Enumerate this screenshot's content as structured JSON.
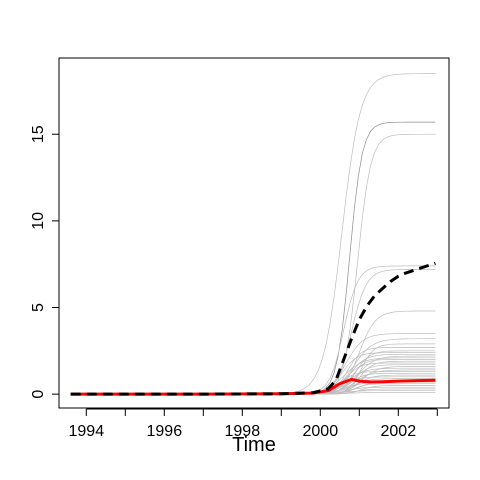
{
  "chart_data": {
    "type": "line",
    "title": "",
    "xlabel": "Time",
    "ylabel": "",
    "xlim": [
      1993.3,
      2003.3
    ],
    "ylim": [
      -0.8,
      19.4
    ],
    "x_ticks": [
      1994,
      1995,
      1996,
      1997,
      1998,
      1999,
      2000,
      2001,
      2002,
      2003
    ],
    "x_tick_labels": [
      "1994",
      "",
      "1996",
      "",
      "1998",
      "",
      "2000",
      "",
      "2002",
      ""
    ],
    "y_ticks": [
      0,
      5,
      10,
      15
    ],
    "y_tick_labels": [
      "0",
      "5",
      "10",
      "15"
    ],
    "grid": false,
    "legend": "none",
    "colors": {
      "background_series": "#bdbdbd",
      "dark_background_series": "#8c8c8c",
      "mean_series": "#000000",
      "median_series": "#ff0000"
    },
    "background_series_plateaus": [
      18.5,
      15.7,
      15.0,
      7.4,
      7.2,
      4.8,
      3.5,
      3.2,
      2.9,
      2.7,
      2.5,
      2.4,
      2.3,
      2.2,
      2.1,
      2.0,
      1.9,
      1.8,
      1.7,
      1.6,
      1.5,
      1.4,
      1.3,
      1.2,
      1.1,
      1.0,
      0.9,
      0.8,
      0.7,
      0.6,
      0.5,
      0.4,
      0.3,
      0.2,
      0.1
    ],
    "series": [
      {
        "style": "dashed",
        "color": "#000000",
        "x": [
          1993.6,
          1995,
          1997,
          1999,
          1999.8,
          2000.2,
          2000.4,
          2000.6,
          2000.8,
          2001.0,
          2001.2,
          2001.4,
          2001.6,
          2001.8,
          2002.0,
          2002.2,
          2002.4,
          2002.6,
          2002.8,
          2002.95
        ],
        "y": [
          0,
          0,
          0,
          0.02,
          0.08,
          0.3,
          0.8,
          2.0,
          3.2,
          4.3,
          5.1,
          5.7,
          6.1,
          6.5,
          6.8,
          7.0,
          7.15,
          7.3,
          7.45,
          7.55
        ]
      },
      {
        "style": "solid",
        "color": "#ff0000",
        "x": [
          1993.6,
          1995,
          1997,
          1999,
          1999.8,
          2000.2,
          2000.5,
          2000.8,
          2001.0,
          2001.3,
          2001.6,
          2002.0,
          2002.5,
          2002.95
        ],
        "y": [
          0,
          0,
          0,
          0.02,
          0.06,
          0.2,
          0.6,
          0.85,
          0.75,
          0.7,
          0.72,
          0.75,
          0.78,
          0.8
        ]
      }
    ]
  }
}
